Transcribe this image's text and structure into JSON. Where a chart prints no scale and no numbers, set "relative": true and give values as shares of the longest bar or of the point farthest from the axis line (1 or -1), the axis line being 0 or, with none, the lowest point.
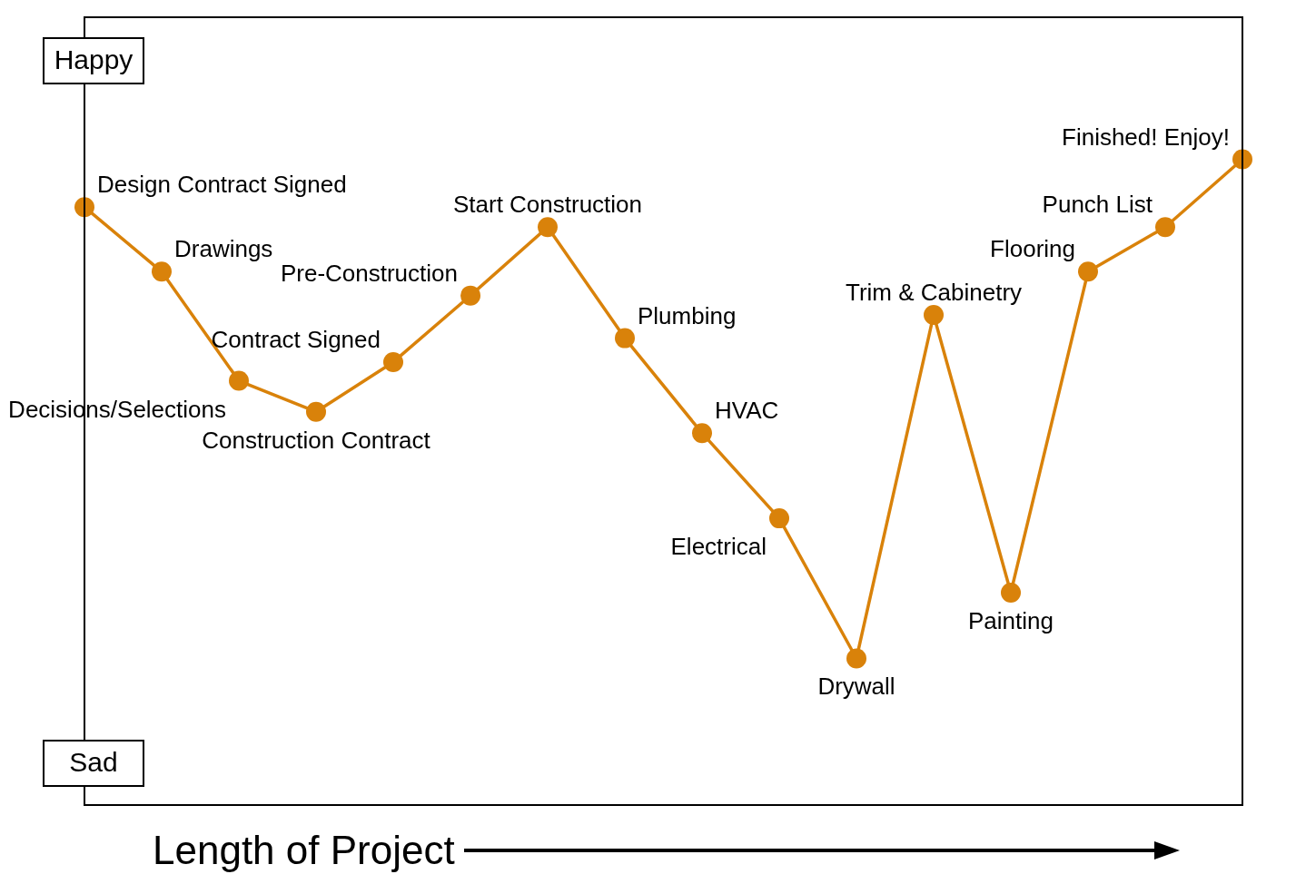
{
  "chart_data": {
    "type": "line",
    "relative": true,
    "xlabel": "Length of Project",
    "annotations": [
      "Happy",
      "Sad",
      "Design Contract Signed",
      "Drawings",
      "Decisions/Selections",
      "Construction Contract",
      "Contract Signed",
      "Pre-Construction",
      "Start Construction",
      "Plumbing",
      "HVAC",
      "Electrical",
      "Drywall",
      "Trim & Cabinetry",
      "Painting",
      "Flooring",
      "Punch List",
      "Finished! Enjoy!"
    ],
    "categories": [
      null,
      null,
      null,
      null,
      null,
      null,
      null,
      null,
      null,
      null,
      null,
      null,
      null,
      null,
      null,
      null
    ],
    "series": [
      {
        "color": "#d9820a",
        "values": [
          0.926,
          0.826,
          0.657,
          0.609,
          0.686,
          0.789,
          0.895,
          0.723,
          0.576,
          0.444,
          0.227,
          0.759,
          0.329,
          0.826,
          0.895,
          1
        ]
      }
    ],
    "marker": "circle",
    "line_style": "solid",
    "legend": false
  }
}
